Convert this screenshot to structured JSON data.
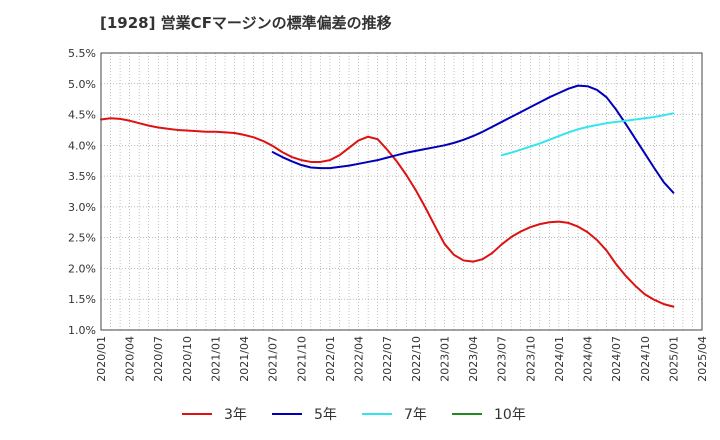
{
  "chart_data": {
    "type": "line",
    "title": "[1928]  営業CFマージンの標準偏差の推移",
    "xlabel": "",
    "ylabel": "",
    "x_ticks": [
      "2020/01",
      "2020/04",
      "2020/07",
      "2020/10",
      "2021/01",
      "2021/04",
      "2021/07",
      "2021/10",
      "2022/01",
      "2022/04",
      "2022/07",
      "2022/10",
      "2023/01",
      "2023/04",
      "2023/07",
      "2023/10",
      "2024/01",
      "2024/04",
      "2024/07",
      "2024/10",
      "2025/01",
      "2025/04"
    ],
    "y_ticks": [
      "1.0%",
      "1.5%",
      "2.0%",
      "2.5%",
      "3.0%",
      "3.5%",
      "4.0%",
      "4.5%",
      "5.0%",
      "5.5%"
    ],
    "ylim": [
      1.0,
      5.5
    ],
    "x_range": [
      "2020/01",
      "2025/04"
    ],
    "grid": true,
    "legend_position": "bottom",
    "series": [
      {
        "name": "3年",
        "color": "#dd1111",
        "points": [
          [
            "2020/01",
            4.42
          ],
          [
            "2020/02",
            4.44
          ],
          [
            "2020/03",
            4.43
          ],
          [
            "2020/04",
            4.4
          ],
          [
            "2020/05",
            4.36
          ],
          [
            "2020/06",
            4.32
          ],
          [
            "2020/07",
            4.29
          ],
          [
            "2020/08",
            4.27
          ],
          [
            "2020/09",
            4.25
          ],
          [
            "2020/10",
            4.24
          ],
          [
            "2020/11",
            4.23
          ],
          [
            "2020/12",
            4.22
          ],
          [
            "2021/01",
            4.22
          ],
          [
            "2021/02",
            4.21
          ],
          [
            "2021/03",
            4.2
          ],
          [
            "2021/04",
            4.17
          ],
          [
            "2021/05",
            4.13
          ],
          [
            "2021/06",
            4.07
          ],
          [
            "2021/07",
            3.99
          ],
          [
            "2021/08",
            3.89
          ],
          [
            "2021/09",
            3.81
          ],
          [
            "2021/10",
            3.76
          ],
          [
            "2021/11",
            3.73
          ],
          [
            "2021/12",
            3.73
          ],
          [
            "2022/01",
            3.76
          ],
          [
            "2022/02",
            3.84
          ],
          [
            "2022/03",
            3.96
          ],
          [
            "2022/04",
            4.08
          ],
          [
            "2022/05",
            4.14
          ],
          [
            "2022/06",
            4.1
          ],
          [
            "2022/07",
            3.93
          ],
          [
            "2022/08",
            3.74
          ],
          [
            "2022/09",
            3.52
          ],
          [
            "2022/10",
            3.27
          ],
          [
            "2022/11",
            2.99
          ],
          [
            "2022/12",
            2.69
          ],
          [
            "2023/01",
            2.4
          ],
          [
            "2023/02",
            2.22
          ],
          [
            "2023/03",
            2.13
          ],
          [
            "2023/04",
            2.11
          ],
          [
            "2023/05",
            2.15
          ],
          [
            "2023/06",
            2.25
          ],
          [
            "2023/07",
            2.39
          ],
          [
            "2023/08",
            2.51
          ],
          [
            "2023/09",
            2.6
          ],
          [
            "2023/10",
            2.67
          ],
          [
            "2023/11",
            2.72
          ],
          [
            "2023/12",
            2.75
          ],
          [
            "2024/01",
            2.76
          ],
          [
            "2024/02",
            2.74
          ],
          [
            "2024/03",
            2.68
          ],
          [
            "2024/04",
            2.59
          ],
          [
            "2024/05",
            2.46
          ],
          [
            "2024/06",
            2.29
          ],
          [
            "2024/07",
            2.07
          ],
          [
            "2024/08",
            1.88
          ],
          [
            "2024/09",
            1.72
          ],
          [
            "2024/10",
            1.58
          ],
          [
            "2024/11",
            1.49
          ],
          [
            "2024/12",
            1.42
          ],
          [
            "2025/01",
            1.38
          ]
        ]
      },
      {
        "name": "5年",
        "color": "#0000bb",
        "points": [
          [
            "2021/07",
            3.89
          ],
          [
            "2021/08",
            3.81
          ],
          [
            "2021/09",
            3.74
          ],
          [
            "2021/10",
            3.68
          ],
          [
            "2021/11",
            3.64
          ],
          [
            "2021/12",
            3.63
          ],
          [
            "2022/01",
            3.63
          ],
          [
            "2022/02",
            3.65
          ],
          [
            "2022/03",
            3.67
          ],
          [
            "2022/04",
            3.7
          ],
          [
            "2022/05",
            3.73
          ],
          [
            "2022/06",
            3.76
          ],
          [
            "2022/07",
            3.8
          ],
          [
            "2022/08",
            3.84
          ],
          [
            "2022/09",
            3.88
          ],
          [
            "2022/10",
            3.91
          ],
          [
            "2022/11",
            3.94
          ],
          [
            "2022/12",
            3.97
          ],
          [
            "2023/01",
            4.0
          ],
          [
            "2023/02",
            4.04
          ],
          [
            "2023/03",
            4.09
          ],
          [
            "2023/04",
            4.15
          ],
          [
            "2023/05",
            4.22
          ],
          [
            "2023/06",
            4.3
          ],
          [
            "2023/07",
            4.38
          ],
          [
            "2023/08",
            4.46
          ],
          [
            "2023/09",
            4.54
          ],
          [
            "2023/10",
            4.62
          ],
          [
            "2023/11",
            4.7
          ],
          [
            "2023/12",
            4.78
          ],
          [
            "2024/01",
            4.85
          ],
          [
            "2024/02",
            4.92
          ],
          [
            "2024/03",
            4.97
          ],
          [
            "2024/04",
            4.96
          ],
          [
            "2024/05",
            4.9
          ],
          [
            "2024/06",
            4.78
          ],
          [
            "2024/07",
            4.58
          ],
          [
            "2024/08",
            4.35
          ],
          [
            "2024/09",
            4.11
          ],
          [
            "2024/10",
            3.87
          ],
          [
            "2024/11",
            3.63
          ],
          [
            "2024/12",
            3.4
          ],
          [
            "2025/01",
            3.23
          ]
        ]
      },
      {
        "name": "7年",
        "color": "#33e5ee",
        "points": [
          [
            "2023/07",
            3.84
          ],
          [
            "2023/08",
            3.88
          ],
          [
            "2023/09",
            3.93
          ],
          [
            "2023/10",
            3.98
          ],
          [
            "2023/11",
            4.03
          ],
          [
            "2023/12",
            4.09
          ],
          [
            "2024/01",
            4.15
          ],
          [
            "2024/02",
            4.21
          ],
          [
            "2024/03",
            4.26
          ],
          [
            "2024/04",
            4.3
          ],
          [
            "2024/05",
            4.33
          ],
          [
            "2024/06",
            4.36
          ],
          [
            "2024/07",
            4.38
          ],
          [
            "2024/08",
            4.4
          ],
          [
            "2024/09",
            4.42
          ],
          [
            "2024/10",
            4.44
          ],
          [
            "2024/11",
            4.46
          ],
          [
            "2024/12",
            4.49
          ],
          [
            "2025/01",
            4.52
          ]
        ]
      },
      {
        "name": "10年",
        "color": "#228822",
        "points": []
      }
    ]
  }
}
